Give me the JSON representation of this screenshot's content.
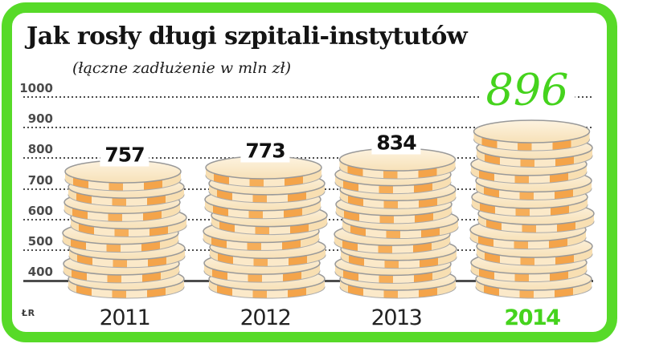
{
  "header": {
    "title": "Jak rosły długi szpitali-instytutów",
    "subtitle": "(łączne zadłużenie w mln zł)"
  },
  "credit": "ŁR",
  "colors": {
    "frame_green": "#57da28",
    "accent_green": "#45d31d",
    "axis_gray": "#4b4b4b",
    "text_dark": "#111111",
    "coin_face_light": "#fdf3e0",
    "coin_face_dark": "#f7e1b8",
    "coin_cream": "#fbe9c9",
    "coin_orange": "#f4a44a",
    "coin_rim_gray": "#999999"
  },
  "chart_data": {
    "type": "bar",
    "variant": "coin-stack pictogram",
    "title": "Jak rosły długi szpitali-instytutów",
    "subtitle": "(łączne zadłużenie w mln zł)",
    "unit": "mln zł",
    "categories": [
      "2011",
      "2012",
      "2013",
      "2014"
    ],
    "values": [
      757,
      773,
      834,
      896
    ],
    "highlight_index": 3,
    "highlight_color": "#45d31d",
    "yticks": [
      1000,
      900,
      800,
      700,
      600,
      500,
      400
    ],
    "ylim": [
      400,
      1000
    ],
    "grid": "horizontal dotted lines, solid baseline at 400",
    "legend": "none"
  }
}
